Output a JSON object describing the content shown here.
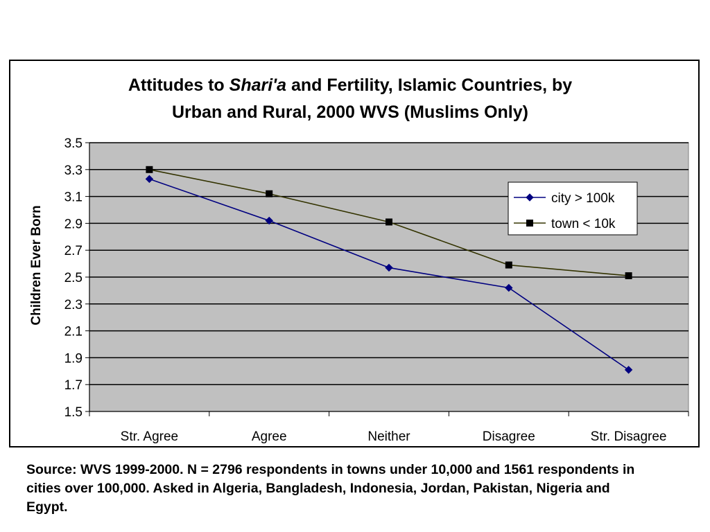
{
  "chart_data": {
    "type": "line",
    "title_parts": [
      "Attitudes to ",
      "Shari'a",
      " and Fertility, Islamic Countries, by"
    ],
    "title_line2": "Urban and Rural, 2000 WVS (Muslims Only)",
    "ylabel": "Children Ever Born",
    "xlabel": "",
    "categories": [
      "Str. Agree",
      "Agree",
      "Neither",
      "Disagree",
      "Str. Disagree"
    ],
    "ylim": [
      1.5,
      3.5
    ],
    "yticks": [
      "1.5",
      "1.7",
      "1.9",
      "2.1",
      "2.3",
      "2.5",
      "2.7",
      "2.9",
      "3.1",
      "3.3",
      "3.5"
    ],
    "grid": true,
    "legend_position": "top-right",
    "series": [
      {
        "name": "city > 100k",
        "values": [
          3.23,
          2.92,
          2.57,
          2.42,
          1.81
        ],
        "color": "#000080",
        "marker": "diamond"
      },
      {
        "name": "town < 10k",
        "values": [
          3.3,
          3.12,
          2.91,
          2.59,
          2.51
        ],
        "color": "#333300",
        "marker": "square"
      }
    ],
    "plot_background": "#c0c0c0"
  },
  "source_note": "Source: WVS 1999-2000. N = 2796 respondents in towns under 10,000 and 1561 respondents in cities over 100,000. Asked in Algeria, Bangladesh, Indonesia, Jordan, Pakistan, Nigeria and Egypt."
}
